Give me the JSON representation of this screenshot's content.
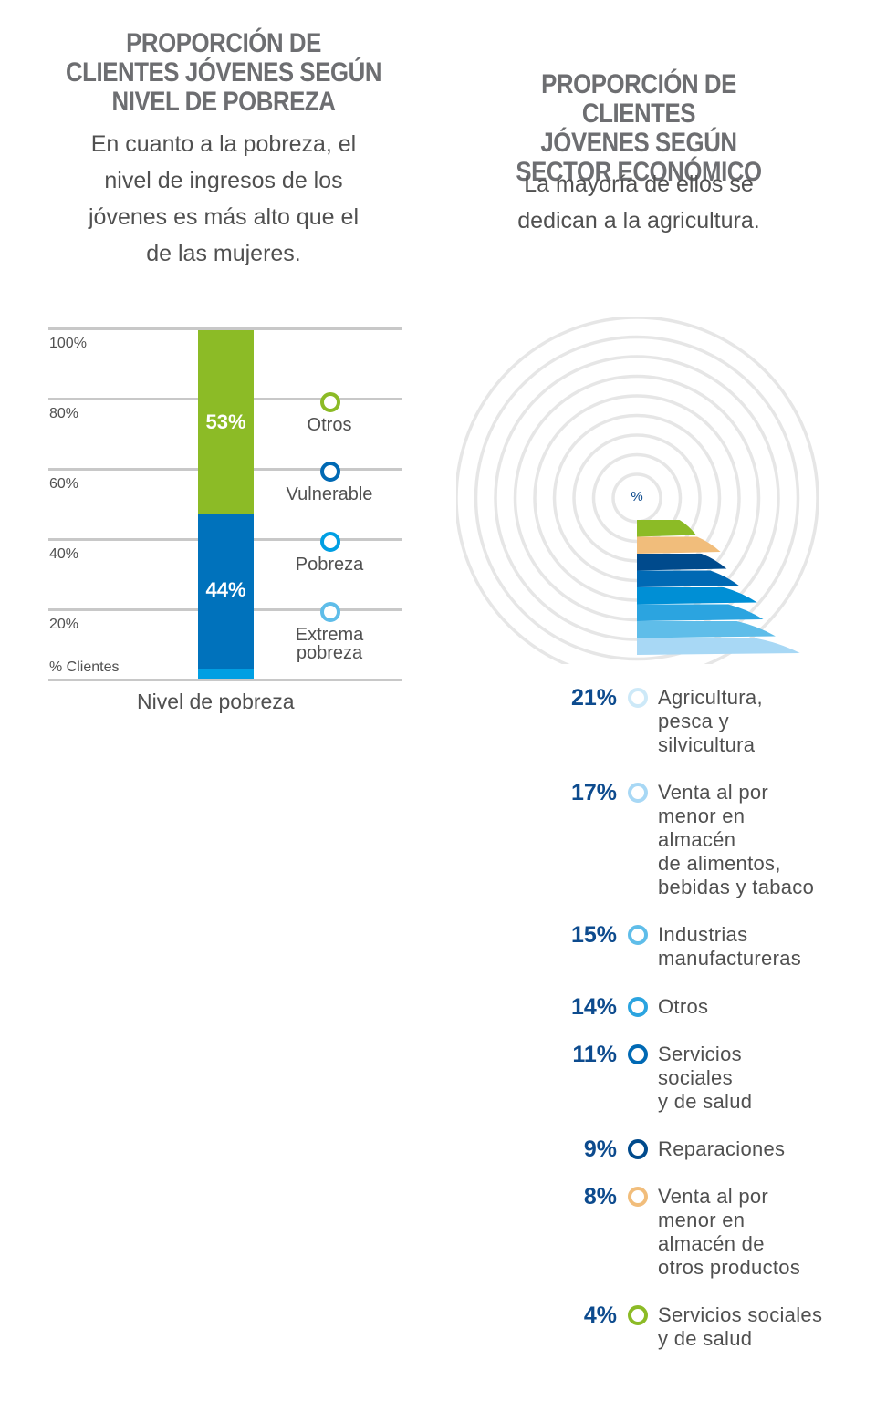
{
  "left": {
    "title": "PROPORCIÓN DE\nCLIENTES JÓVENES SEGÚN\nNIVEL DE POBREZA",
    "subtitle": "En cuanto a la pobreza, el\nnivel de ingresos de los\njóvenes es más alto que el\nde las mujeres."
  },
  "right": {
    "title": "PROPORCIÓN DE CLIENTES\nJÓVENES SEGÚN\nSECTOR ECONÓMICO",
    "subtitle": "La mayoría de ellos se\ndedican a la agricultura."
  },
  "chart_data": [
    {
      "type": "bar",
      "stacked": true,
      "title": "PROPORCIÓN DE CLIENTES JÓVENES SEGÚN NIVEL DE POBREZA",
      "xlabel": "Nivel de pobreza",
      "ylabel": "% Clientes",
      "ylim": [
        0,
        100
      ],
      "yticks": [
        "100%",
        "80%",
        "60%",
        "40%",
        "20%"
      ],
      "grid": true,
      "series": [
        {
          "name": "Extrema pobreza",
          "value": 3,
          "label": "",
          "color": "#009fe3"
        },
        {
          "name": "Pobreza",
          "value": 0,
          "label": "",
          "color": "#009fe3"
        },
        {
          "name": "Vulnerable",
          "value": 44,
          "label": "44%",
          "color": "#0072bc"
        },
        {
          "name": "Otros",
          "value": 53,
          "label": "53%",
          "color": "#8cbb26"
        }
      ],
      "legend_order": [
        "Otros",
        "Vulnerable",
        "Pobreza",
        "Extrema pobreza"
      ]
    },
    {
      "type": "pie",
      "subtype": "radial-quarter",
      "center_label": "%",
      "slices": [
        {
          "label": "Agricultura,\npesca y\nsilvicultura",
          "value": 21,
          "pct": "21%",
          "color": "#a8d8f5"
        },
        {
          "label": "Venta al por\nmenor en\nalmacén\nde alimentos,\nbebidas y tabaco",
          "value": 17,
          "pct": "17%",
          "color": "#5fbde9"
        },
        {
          "label": "Industrias\nmanufactureras",
          "value": 15,
          "pct": "15%",
          "color": "#2ba4e0"
        },
        {
          "label": "Otros",
          "value": 14,
          "pct": "14%",
          "color": "#008fd5"
        },
        {
          "label": "Servicios\nsociales\ny de salud",
          "value": 11,
          "pct": "11%",
          "color": "#0069b4"
        },
        {
          "label": "Reparaciones",
          "value": 9,
          "pct": "9%",
          "color": "#004a8c"
        },
        {
          "label": "Venta al por\nmenor en\nalmacén de\notros productos",
          "value": 8,
          "pct": "8%",
          "color": "#f1bd7b"
        },
        {
          "label": "Servicios sociales\ny de salud",
          "value": 4,
          "pct": "4%",
          "color": "#8cbb26"
        }
      ],
      "ring_colors": [
        "#cde9f8",
        "#a8d8f5",
        "#5fbde9",
        "#2ba4e0",
        "#0069b4",
        "#004a8c",
        "#f1bd7b",
        "#8cbb26"
      ]
    }
  ]
}
